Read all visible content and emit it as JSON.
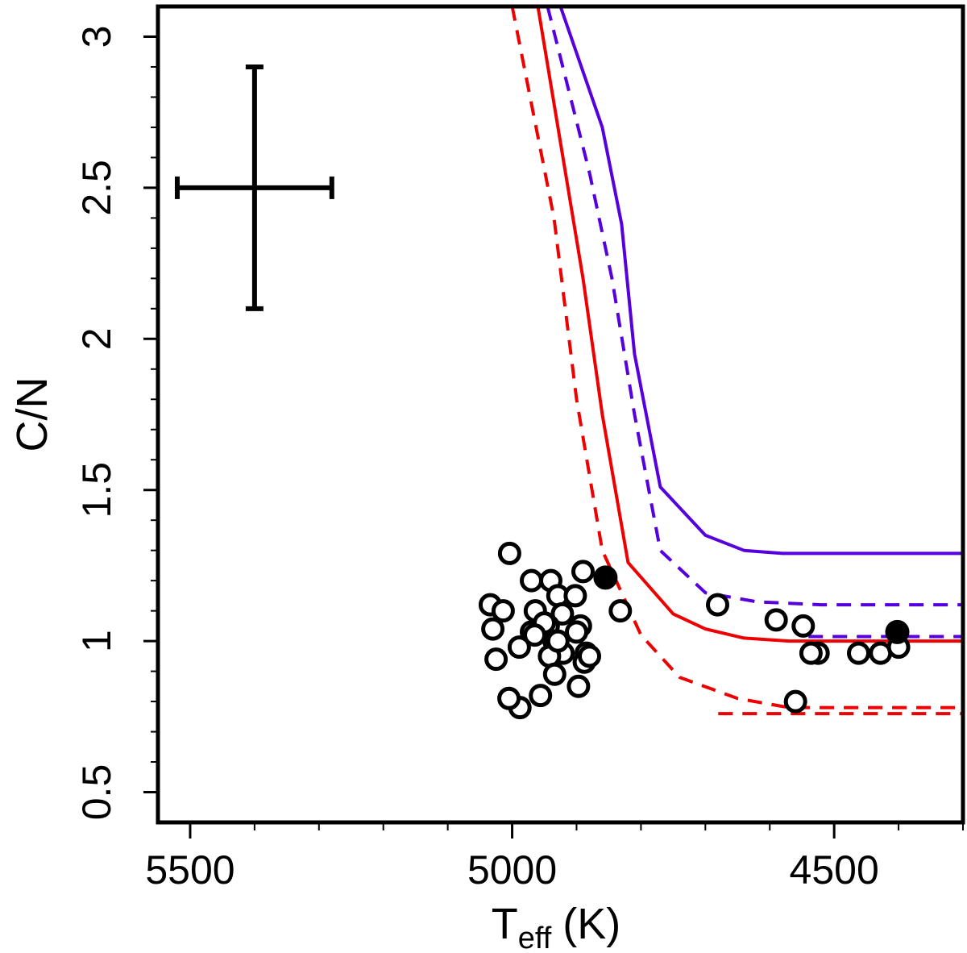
{
  "chart_data": {
    "type": "scatter",
    "xlabel": {
      "main": "T",
      "sub": "eff",
      "unit": "(K)"
    },
    "ylabel": "C/N",
    "xlim": [
      5550,
      4300
    ],
    "ylim": [
      0.4,
      3.1
    ],
    "x_ticks": [
      5500,
      5000,
      4500
    ],
    "x_tick_labels": [
      "5500",
      "5000",
      "4500"
    ],
    "x_minor_ticks": [
      5400,
      5300,
      5200,
      5100,
      4900,
      4800,
      4700,
      4600,
      4400,
      4300
    ],
    "y_ticks": [
      0.5,
      1,
      1.5,
      2,
      2.5,
      3
    ],
    "y_tick_labels": [
      "0.5",
      "1",
      "1.5",
      "2",
      "2.5",
      "3"
    ],
    "y_minor_ticks": [
      0.6,
      0.7,
      0.8,
      0.9,
      1.1,
      1.2,
      1.3,
      1.4,
      1.6,
      1.7,
      1.8,
      1.9,
      2.1,
      2.2,
      2.3,
      2.4,
      2.6,
      2.7,
      2.8,
      2.9,
      3.0
    ],
    "error_bar": {
      "x": 5400,
      "y": 2.5,
      "x_err": [
        5520,
        5280
      ],
      "y_err": [
        2.1,
        2.9
      ]
    },
    "series": [
      {
        "name": "model-blue-solid",
        "color": "#5500dd",
        "style": "solid",
        "x": [
          4925,
          4860,
          4830,
          4810,
          4770,
          4700,
          4640,
          4580,
          4450,
          4300
        ],
        "y": [
          3.1,
          2.7,
          2.38,
          1.95,
          1.51,
          1.35,
          1.3,
          1.29,
          1.29,
          1.29
        ]
      },
      {
        "name": "model-blue-dashed",
        "color": "#5500dd",
        "style": "dashed",
        "x": [
          4945,
          4880,
          4845,
          4810,
          4770,
          4700,
          4620,
          4520,
          4400,
          4300
        ],
        "y": [
          3.1,
          2.55,
          2.2,
          1.75,
          1.3,
          1.16,
          1.13,
          1.12,
          1.12,
          1.12
        ]
      },
      {
        "name": "model-blue-dashed-lower",
        "color": "#5500dd",
        "style": "dashed",
        "x": [
          4540,
          4300
        ],
        "y": [
          1.015,
          1.015
        ]
      },
      {
        "name": "model-red-solid",
        "color": "#ee0000",
        "style": "solid",
        "x": [
          4960,
          4890,
          4860,
          4820,
          4750,
          4700,
          4640,
          4570,
          4450,
          4300
        ],
        "y": [
          3.1,
          2.2,
          1.75,
          1.26,
          1.09,
          1.04,
          1.01,
          1.0,
          1.0,
          1.0
        ]
      },
      {
        "name": "model-red-dashed",
        "color": "#ee0000",
        "style": "dashed",
        "x": [
          5000,
          4935,
          4900,
          4860,
          4800,
          4740,
          4650,
          4570,
          4450,
          4300
        ],
        "y": [
          3.1,
          2.4,
          1.8,
          1.3,
          1.02,
          0.88,
          0.81,
          0.78,
          0.78,
          0.78
        ]
      },
      {
        "name": "model-red-dashed-lower",
        "color": "#ee0000",
        "style": "dashed",
        "x": [
          4680,
          4300
        ],
        "y": [
          0.76,
          0.76
        ]
      },
      {
        "name": "stars-open",
        "marker": "open-circle",
        "x": [
          5004,
          5034,
          5014,
          4970,
          4940,
          4890,
          4929,
          4902,
          4964,
          4922,
          4989,
          4944,
          4958,
          4935,
          4894,
          4885,
          4921,
          4900,
          4942,
          4888,
          4934,
          4988,
          4956,
          4897,
          5025,
          5005,
          4880,
          4832,
          4970,
          5030,
          4950,
          4965,
          4929,
          4681,
          4525,
          4548,
          4590,
          4560,
          4536,
          4462,
          4428,
          4400
        ],
        "y": [
          1.29,
          1.12,
          1.1,
          1.2,
          1.2,
          1.23,
          1.15,
          1.15,
          1.1,
          1.09,
          0.98,
          1.05,
          1.03,
          1.0,
          1.05,
          0.96,
          0.96,
          1.03,
          0.95,
          0.93,
          0.89,
          0.78,
          0.82,
          0.85,
          0.94,
          0.81,
          0.95,
          1.1,
          1.03,
          1.04,
          1.06,
          1.02,
          1.0,
          1.12,
          0.96,
          1.05,
          1.07,
          0.8,
          0.96,
          0.96,
          0.96,
          0.98
        ]
      },
      {
        "name": "stars-filled",
        "marker": "filled-circle",
        "x": [
          4855,
          4402
        ],
        "y": [
          1.21,
          1.03
        ]
      }
    ]
  }
}
